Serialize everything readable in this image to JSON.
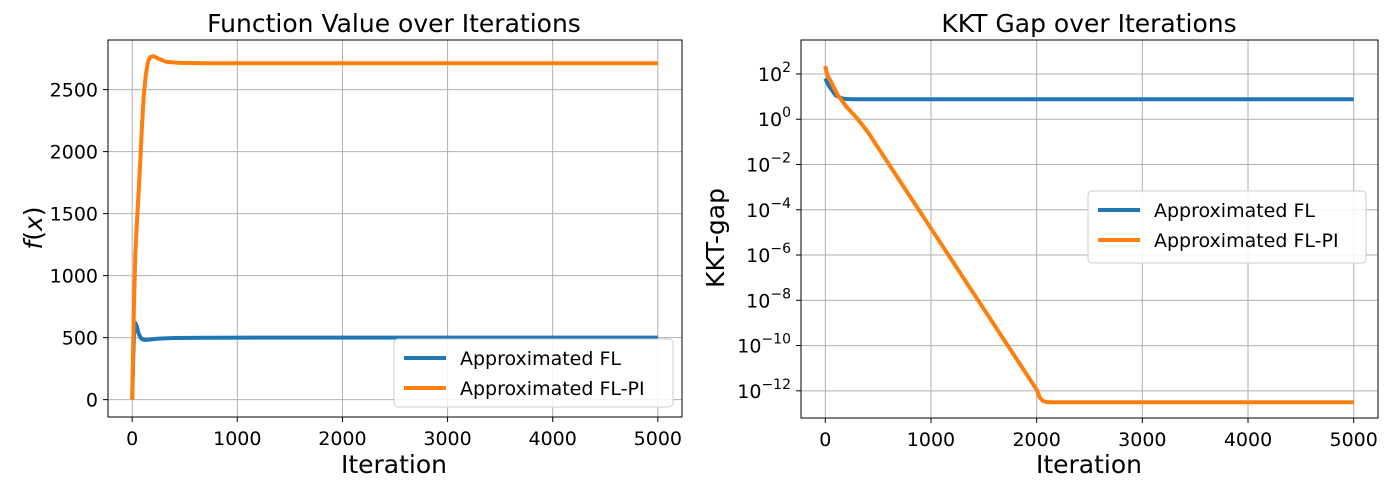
{
  "chart_data": [
    {
      "type": "line",
      "title": "Function Value over Iterations",
      "xlabel": "Iteration",
      "ylabel_prefix": "f",
      "ylabel_arg": "x",
      "xlim": [
        -230,
        5230
      ],
      "ylim": [
        -140,
        2900
      ],
      "yscale": "linear",
      "grid": true,
      "legend_position": "lower-right",
      "xticks": [
        0,
        1000,
        2000,
        3000,
        4000,
        5000
      ],
      "xtick_labels": [
        "0",
        "1000",
        "2000",
        "3000",
        "4000",
        "5000"
      ],
      "yticks": [
        0,
        500,
        1000,
        1500,
        2000,
        2500
      ],
      "ytick_labels": [
        "0",
        "500",
        "1000",
        "1500",
        "2000",
        "2500"
      ],
      "series": [
        {
          "name": "Approximated FL",
          "color": "#1f77b4",
          "points": [
            [
              0,
              0
            ],
            [
              10,
              330
            ],
            [
              20,
              600
            ],
            [
              30,
              620
            ],
            [
              45,
              590
            ],
            [
              60,
              535
            ],
            [
              80,
              500
            ],
            [
              100,
              485
            ],
            [
              130,
              482
            ],
            [
              170,
              485
            ],
            [
              250,
              492
            ],
            [
              400,
              497
            ],
            [
              700,
              499
            ],
            [
              1500,
              500
            ],
            [
              5000,
              500
            ]
          ]
        },
        {
          "name": "Approximated FL-PI",
          "color": "#ff7f0e",
          "points": [
            [
              0,
              0
            ],
            [
              15,
              700
            ],
            [
              30,
              1180
            ],
            [
              50,
              1500
            ],
            [
              70,
              1800
            ],
            [
              90,
              2150
            ],
            [
              110,
              2450
            ],
            [
              130,
              2620
            ],
            [
              150,
              2720
            ],
            [
              170,
              2760
            ],
            [
              200,
              2770
            ],
            [
              250,
              2750
            ],
            [
              320,
              2725
            ],
            [
              450,
              2715
            ],
            [
              700,
              2713
            ],
            [
              5000,
              2713
            ]
          ]
        }
      ]
    },
    {
      "type": "line",
      "title": "KKT Gap over Iterations",
      "xlabel": "Iteration",
      "ylabel": "KKT-gap",
      "xlim": [
        -230,
        5230
      ],
      "ylim_log10": [
        -13.2,
        3.5
      ],
      "yscale": "log",
      "grid": true,
      "legend_position": "center-right",
      "xticks": [
        0,
        1000,
        2000,
        3000,
        4000,
        5000
      ],
      "xtick_labels": [
        "0",
        "1000",
        "2000",
        "3000",
        "4000",
        "5000"
      ],
      "yticks_log10": [
        2,
        0,
        -2,
        -4,
        -6,
        -8,
        -10,
        -12
      ],
      "ytick_base": "10",
      "ytick_exponents": [
        "2",
        "0",
        "−2",
        "−4",
        "−6",
        "−8",
        "−10",
        "−12"
      ],
      "series": [
        {
          "name": "Approximated FL",
          "color": "#1f77b4",
          "points_log10": [
            [
              0,
              1.8
            ],
            [
              30,
              1.5
            ],
            [
              60,
              1.3
            ],
            [
              100,
              1.05
            ],
            [
              140,
              0.95
            ],
            [
              180,
              0.9
            ],
            [
              250,
              0.88
            ],
            [
              5000,
              0.88
            ]
          ]
        },
        {
          "name": "Approximated FL-PI",
          "color": "#ff7f0e",
          "points_log10": [
            [
              0,
              2.35
            ],
            [
              10,
              2.1
            ],
            [
              20,
              1.95
            ],
            [
              60,
              1.6
            ],
            [
              120,
              1.05
            ],
            [
              200,
              0.55
            ],
            [
              300,
              0.05
            ],
            [
              400,
              -0.55
            ],
            [
              2000,
              -11.95
            ],
            [
              2030,
              -12.3
            ],
            [
              2060,
              -12.45
            ],
            [
              2100,
              -12.5
            ],
            [
              5000,
              -12.5
            ]
          ]
        }
      ]
    }
  ]
}
